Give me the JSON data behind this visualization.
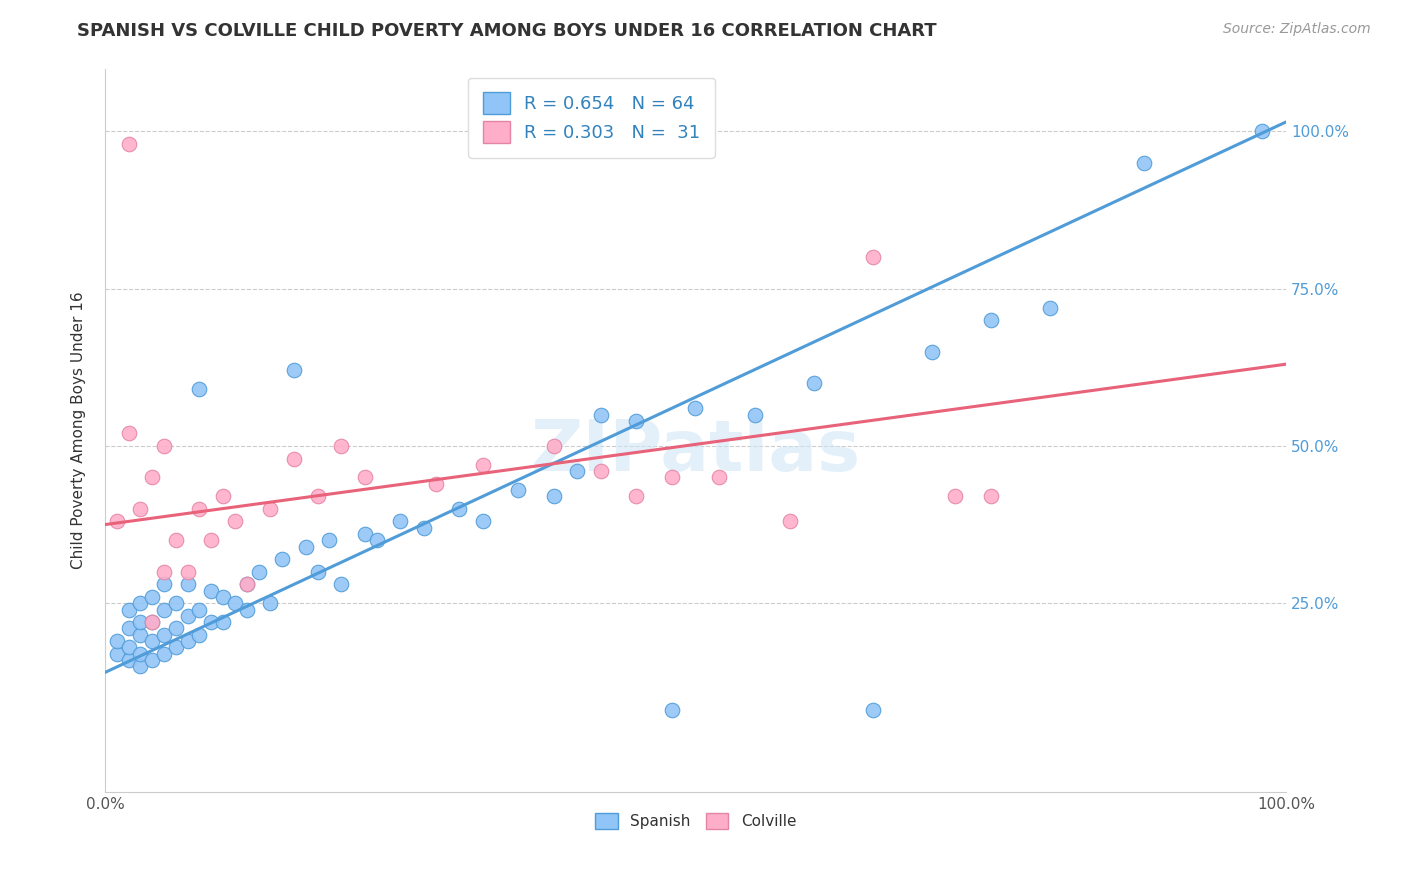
{
  "title": "SPANISH VS COLVILLE CHILD POVERTY AMONG BOYS UNDER 16 CORRELATION CHART",
  "source": "Source: ZipAtlas.com",
  "ylabel": "Child Poverty Among Boys Under 16",
  "xlim": [
    0,
    1
  ],
  "ylim": [
    -0.05,
    1.1
  ],
  "yticks": [
    0.0,
    0.25,
    0.5,
    0.75,
    1.0
  ],
  "ytick_labels": [
    "",
    "25.0%",
    "50.0%",
    "75.0%",
    "100.0%"
  ],
  "blue_color": "#92c5f7",
  "pink_color": "#ffaec9",
  "blue_line_color": "#4f9cd8",
  "pink_line_color": "#e8637a",
  "blue_intercept": 0.14,
  "blue_slope": 0.875,
  "pink_intercept": 0.375,
  "pink_slope": 0.255,
  "title_fontsize": 13,
  "source_fontsize": 10,
  "axis_label_fontsize": 11,
  "legend_fontsize": 13,
  "watermark": "ZIPatlas",
  "blue_x": [
    0.01,
    0.01,
    0.02,
    0.02,
    0.02,
    0.02,
    0.03,
    0.03,
    0.03,
    0.03,
    0.03,
    0.04,
    0.04,
    0.04,
    0.04,
    0.05,
    0.05,
    0.05,
    0.05,
    0.06,
    0.06,
    0.06,
    0.07,
    0.07,
    0.07,
    0.08,
    0.08,
    0.08,
    0.09,
    0.09,
    0.1,
    0.1,
    0.11,
    0.12,
    0.12,
    0.13,
    0.14,
    0.15,
    0.16,
    0.17,
    0.18,
    0.19,
    0.2,
    0.22,
    0.23,
    0.25,
    0.27,
    0.3,
    0.32,
    0.35,
    0.38,
    0.4,
    0.42,
    0.45,
    0.48,
    0.5,
    0.55,
    0.6,
    0.65,
    0.7,
    0.75,
    0.8,
    0.88,
    0.98
  ],
  "blue_y": [
    0.17,
    0.19,
    0.16,
    0.18,
    0.21,
    0.24,
    0.15,
    0.17,
    0.2,
    0.22,
    0.25,
    0.16,
    0.19,
    0.22,
    0.26,
    0.17,
    0.2,
    0.24,
    0.28,
    0.18,
    0.21,
    0.25,
    0.19,
    0.23,
    0.28,
    0.2,
    0.24,
    0.59,
    0.22,
    0.27,
    0.22,
    0.26,
    0.25,
    0.28,
    0.24,
    0.3,
    0.25,
    0.32,
    0.62,
    0.34,
    0.3,
    0.35,
    0.28,
    0.36,
    0.35,
    0.38,
    0.37,
    0.4,
    0.38,
    0.43,
    0.42,
    0.46,
    0.55,
    0.54,
    0.08,
    0.56,
    0.55,
    0.6,
    0.08,
    0.65,
    0.7,
    0.72,
    0.95,
    1.0
  ],
  "pink_x": [
    0.01,
    0.02,
    0.02,
    0.03,
    0.04,
    0.04,
    0.05,
    0.05,
    0.06,
    0.07,
    0.08,
    0.09,
    0.1,
    0.11,
    0.12,
    0.14,
    0.16,
    0.18,
    0.2,
    0.22,
    0.28,
    0.32,
    0.38,
    0.42,
    0.45,
    0.48,
    0.52,
    0.58,
    0.65,
    0.72,
    0.75
  ],
  "pink_y": [
    0.38,
    0.98,
    0.52,
    0.4,
    0.45,
    0.22,
    0.3,
    0.5,
    0.35,
    0.3,
    0.4,
    0.35,
    0.42,
    0.38,
    0.28,
    0.4,
    0.48,
    0.42,
    0.5,
    0.45,
    0.44,
    0.47,
    0.5,
    0.46,
    0.42,
    0.45,
    0.45,
    0.38,
    0.8,
    0.42,
    0.42
  ]
}
